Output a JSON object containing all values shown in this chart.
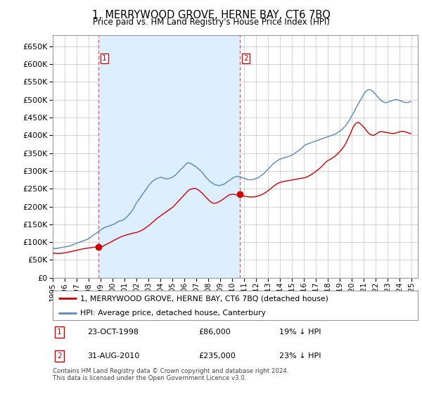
{
  "title": "1, MERRYWOOD GROVE, HERNE BAY, CT6 7BQ",
  "subtitle": "Price paid vs. HM Land Registry's House Price Index (HPI)",
  "legend_line1": "1, MERRYWOOD GROVE, HERNE BAY, CT6 7BQ (detached house)",
  "legend_line2": "HPI: Average price, detached house, Canterbury",
  "table_rows": [
    {
      "num": "1",
      "date": "23-OCT-1998",
      "price": "£86,000",
      "hpi": "19% ↓ HPI"
    },
    {
      "num": "2",
      "date": "31-AUG-2010",
      "price": "£235,000",
      "hpi": "23% ↓ HPI"
    }
  ],
  "footnote": "Contains HM Land Registry data © Crown copyright and database right 2024.\nThis data is licensed under the Open Government Licence v3.0.",
  "sale1_x": 1998.81,
  "sale1_y": 86000,
  "sale2_x": 2010.66,
  "sale2_y": 235000,
  "vline1_x": 1998.81,
  "vline2_x": 2010.66,
  "xmin": 1995.0,
  "xmax": 2025.5,
  "ymin": 0,
  "ymax": 680000,
  "yticks": [
    0,
    50000,
    100000,
    150000,
    200000,
    250000,
    300000,
    350000,
    400000,
    450000,
    500000,
    550000,
    600000,
    650000
  ],
  "red_color": "#cc0000",
  "blue_color": "#5588bb",
  "vline_color": "#dd4444",
  "shade_color": "#ddeeff",
  "grid_color": "#cccccc",
  "background_color": "#ffffff",
  "hpi_data_monthly": {
    "start_year": 1995,
    "start_month": 1,
    "values": [
      83000,
      82500,
      82000,
      82000,
      82500,
      83000,
      83500,
      84000,
      84500,
      85000,
      85500,
      86000,
      86500,
      87000,
      87500,
      88000,
      88500,
      89000,
      90000,
      91000,
      92000,
      93000,
      95000,
      96000,
      97000,
      98000,
      99000,
      100000,
      101000,
      102000,
      103000,
      104000,
      105000,
      106000,
      107000,
      108000,
      110000,
      112000,
      114000,
      116000,
      118000,
      120000,
      122000,
      124000,
      126000,
      128000,
      130000,
      132000,
      134000,
      136000,
      138000,
      140000,
      141000,
      142000,
      143000,
      144000,
      145000,
      146000,
      147000,
      148000,
      149000,
      150000,
      151000,
      153000,
      155000,
      157000,
      158000,
      159000,
      160000,
      161000,
      162000,
      163000,
      165000,
      168000,
      170000,
      173000,
      176000,
      179000,
      182000,
      186000,
      190000,
      195000,
      200000,
      206000,
      210000,
      214000,
      218000,
      222000,
      226000,
      230000,
      234000,
      238000,
      242000,
      246000,
      250000,
      254000,
      258000,
      262000,
      265000,
      268000,
      271000,
      273000,
      275000,
      277000,
      278000,
      279000,
      280000,
      281000,
      282000,
      282000,
      281000,
      280000,
      279000,
      278000,
      278000,
      278000,
      278000,
      279000,
      280000,
      281000,
      282000,
      284000,
      286000,
      288000,
      291000,
      294000,
      297000,
      300000,
      303000,
      306000,
      308000,
      311000,
      314000,
      317000,
      320000,
      322000,
      323000,
      322000,
      321000,
      320000,
      318000,
      316000,
      314000,
      313000,
      311000,
      308000,
      306000,
      303000,
      301000,
      298000,
      295000,
      292000,
      288000,
      284000,
      281000,
      278000,
      275000,
      272000,
      270000,
      268000,
      266000,
      264000,
      262000,
      261000,
      260000,
      260000,
      259000,
      259000,
      259000,
      260000,
      261000,
      262000,
      263000,
      265000,
      267000,
      269000,
      271000,
      273000,
      275000,
      277000,
      279000,
      281000,
      282000,
      283000,
      284000,
      284000,
      284000,
      284000,
      283000,
      282000,
      281000,
      280000,
      279000,
      278000,
      277000,
      276000,
      275000,
      275000,
      275000,
      275000,
      275000,
      276000,
      277000,
      278000,
      279000,
      280000,
      281000,
      283000,
      285000,
      287000,
      289000,
      291000,
      293000,
      296000,
      299000,
      302000,
      305000,
      308000,
      311000,
      314000,
      317000,
      320000,
      322000,
      324000,
      326000,
      328000,
      330000,
      332000,
      333000,
      334000,
      335000,
      336000,
      337000,
      338000,
      338000,
      339000,
      340000,
      341000,
      342000,
      343000,
      344000,
      346000,
      348000,
      350000,
      352000,
      354000,
      356000,
      358000,
      360000,
      362000,
      365000,
      368000,
      370000,
      372000,
      374000,
      375000,
      376000,
      377000,
      378000,
      379000,
      380000,
      381000,
      382000,
      383000,
      384000,
      385000,
      386000,
      387000,
      388000,
      389000,
      390000,
      391000,
      392000,
      393000,
      394000,
      395000,
      396000,
      397000,
      398000,
      399000,
      400000,
      401000,
      402000,
      403000,
      404000,
      406000,
      408000,
      410000,
      412000,
      414000,
      416000,
      419000,
      422000,
      425000,
      428000,
      432000,
      436000,
      440000,
      445000,
      450000,
      455000,
      460000,
      465000,
      470000,
      476000,
      481000,
      486000,
      491000,
      496000,
      501000,
      506000,
      511000,
      516000,
      520000,
      523000,
      525000,
      527000,
      528000,
      528000,
      527000,
      525000,
      523000,
      520000,
      517000,
      514000,
      510000,
      507000,
      504000,
      501000,
      498000,
      496000,
      494000,
      493000,
      492000,
      491000,
      492000,
      493000,
      494000,
      495000,
      496000,
      497000,
      498000,
      499000,
      500000,
      500000,
      500000,
      499000,
      498000,
      497000,
      496000,
      495000,
      494000,
      493000,
      492000,
      492000,
      492000,
      492000,
      493000,
      494000,
      495000
    ]
  },
  "red_data_monthly": {
    "start_year": 1995,
    "start_month": 1,
    "values": [
      69000,
      68800,
      68600,
      68400,
      68300,
      68200,
      68200,
      68300,
      68500,
      68800,
      69100,
      69500,
      70000,
      70500,
      71000,
      71500,
      72000,
      72600,
      73200,
      73800,
      74400,
      75000,
      75600,
      76200,
      77000,
      77800,
      78500,
      79200,
      79800,
      80400,
      81000,
      81500,
      82000,
      82400,
      82700,
      83000,
      83500,
      84000,
      84500,
      85000,
      85400,
      85800,
      86200,
      86500,
      86800,
      86900,
      86800,
      86500,
      86500,
      87000,
      88000,
      89500,
      91000,
      92500,
      94000,
      95500,
      97000,
      98500,
      100000,
      101500,
      103000,
      104500,
      106000,
      107500,
      109000,
      110500,
      111800,
      113000,
      114200,
      115400,
      116500,
      117500,
      118500,
      119500,
      120400,
      121200,
      122000,
      122800,
      123500,
      124200,
      124800,
      125400,
      126000,
      126600,
      127200,
      128000,
      129000,
      130200,
      131500,
      133000,
      134500,
      136000,
      138000,
      140000,
      142000,
      144000,
      146000,
      148000,
      150500,
      153000,
      155500,
      158000,
      160500,
      163000,
      165500,
      167500,
      169500,
      171500,
      173500,
      175500,
      177500,
      179500,
      181500,
      183500,
      185500,
      187500,
      189500,
      191500,
      193500,
      195500,
      197500,
      200000,
      203000,
      206000,
      209000,
      212000,
      215000,
      218000,
      221000,
      224000,
      227000,
      230000,
      233000,
      236000,
      239000,
      242000,
      245000,
      247000,
      248000,
      249000,
      250000,
      250500,
      250800,
      250500,
      249500,
      248000,
      246500,
      244500,
      242000,
      239500,
      237000,
      234000,
      231000,
      228000,
      225000,
      222000,
      219000,
      216500,
      214000,
      212000,
      210500,
      209500,
      209000,
      209000,
      210000,
      211000,
      212500,
      214000,
      215500,
      217000,
      219000,
      221000,
      223000,
      225000,
      227000,
      229000,
      231000,
      232500,
      233500,
      234000,
      234500,
      234500,
      234000,
      233500,
      233000,
      232500,
      232000,
      231500,
      231000,
      230500,
      230000,
      229500,
      229000,
      228500,
      228000,
      227500,
      227000,
      226800,
      226600,
      226500,
      226500,
      226800,
      227100,
      227400,
      228000,
      228800,
      229600,
      230500,
      231500,
      232500,
      234000,
      235500,
      237000,
      238500,
      240500,
      242500,
      244500,
      246500,
      249000,
      251000,
      253500,
      256000,
      258000,
      260000,
      262000,
      264000,
      265500,
      266500,
      267500,
      268500,
      269500,
      270000,
      270500,
      271000,
      271500,
      272000,
      272500,
      273000,
      273500,
      274000,
      274500,
      275000,
      275500,
      276000,
      276500,
      277000,
      277500,
      278000,
      278500,
      279000,
      279500,
      280000,
      280500,
      281000,
      282000,
      283000,
      284500,
      286000,
      287500,
      289000,
      291000,
      293000,
      295000,
      297000,
      299000,
      301000,
      303000,
      305500,
      308000,
      310500,
      313000,
      316000,
      319000,
      322000,
      325000,
      327000,
      329000,
      330500,
      332000,
      333500,
      335000,
      337000,
      339000,
      341500,
      343500,
      346000,
      349000,
      352000,
      355000,
      358000,
      361500,
      365000,
      369000,
      373000,
      378000,
      384000,
      390000,
      396000,
      402000,
      408000,
      415000,
      421000,
      426000,
      430000,
      433000,
      435500,
      436000,
      435000,
      433000,
      430500,
      428000,
      425000,
      422000,
      419000,
      415000,
      411500,
      408000,
      405000,
      403000,
      401500,
      400500,
      400000,
      400000,
      401000,
      403000,
      405000,
      407000,
      408500,
      409500,
      410000,
      410000,
      409500,
      409000,
      408500,
      408000,
      407500,
      407000,
      406500,
      406000,
      405500,
      405000,
      405000,
      405000,
      405500,
      406000,
      407000,
      408000,
      409000,
      410000,
      410500,
      411000,
      411000,
      410500,
      410000,
      409000,
      408000,
      407000,
      406000,
      405000,
      404500
    ]
  }
}
